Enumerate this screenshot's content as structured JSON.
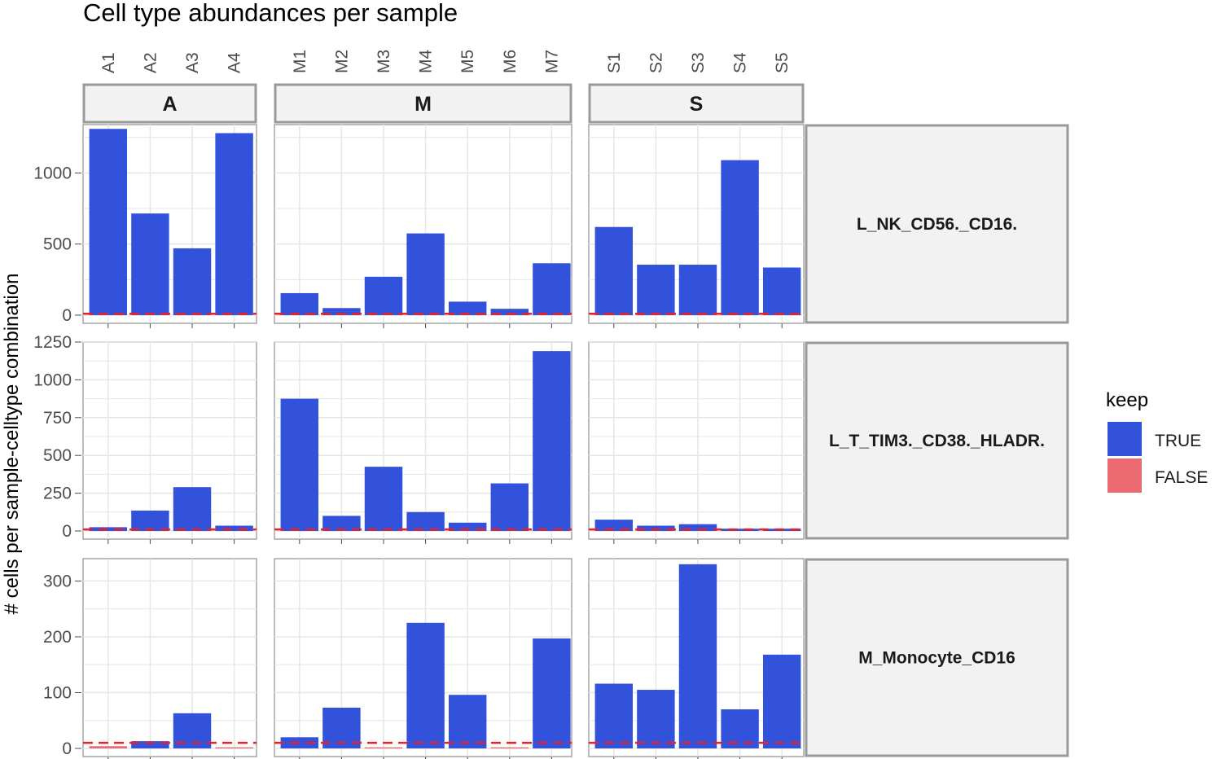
{
  "chart_data": {
    "type": "bar",
    "title": "Cell type abundances per sample",
    "xlabel": "",
    "ylabel": "# cells per sample-celltype combination",
    "threshold": 10,
    "legend": {
      "title": "keep",
      "position": "right",
      "entries": [
        {
          "label": "TRUE",
          "color": "#3352DB"
        },
        {
          "label": "FALSE",
          "color": "#EB6A70"
        }
      ]
    },
    "threshold_color": "#E8202A",
    "grid": true,
    "columns": [
      {
        "label": "A",
        "samples": [
          "A1",
          "A2",
          "A3",
          "A4"
        ]
      },
      {
        "label": "M",
        "samples": [
          "M1",
          "M2",
          "M3",
          "M4",
          "M5",
          "M6",
          "M7"
        ]
      },
      {
        "label": "S",
        "samples": [
          "S1",
          "S2",
          "S3",
          "S4",
          "S5"
        ]
      }
    ],
    "rows": [
      {
        "label": "L_NK_CD56._CD16.",
        "ylim": [
          0,
          1340
        ],
        "yticks": [
          0,
          500,
          1000
        ],
        "values": {
          "A": [
            1310,
            715,
            470,
            1280
          ],
          "M": [
            155,
            50,
            270,
            575,
            95,
            45,
            365
          ],
          "S": [
            620,
            355,
            355,
            1090,
            335
          ]
        }
      },
      {
        "label": "L_T_TIM3._CD38._HLADR.",
        "ylim": [
          0,
          1250
        ],
        "yticks": [
          0,
          250,
          500,
          750,
          1000,
          1250
        ],
        "values": {
          "A": [
            25,
            135,
            290,
            35
          ],
          "M": [
            875,
            100,
            425,
            125,
            55,
            315,
            1190
          ],
          "S": [
            75,
            35,
            45,
            15,
            15
          ]
        }
      },
      {
        "label": "M_Monocyte_CD16",
        "ylim": [
          0,
          340
        ],
        "yticks": [
          0,
          100,
          200,
          300
        ],
        "values": {
          "A": [
            4,
            13,
            63,
            2
          ],
          "M": [
            20,
            73,
            2,
            225,
            96,
            2,
            197
          ],
          "S": [
            116,
            105,
            330,
            70,
            168
          ]
        }
      }
    ]
  }
}
